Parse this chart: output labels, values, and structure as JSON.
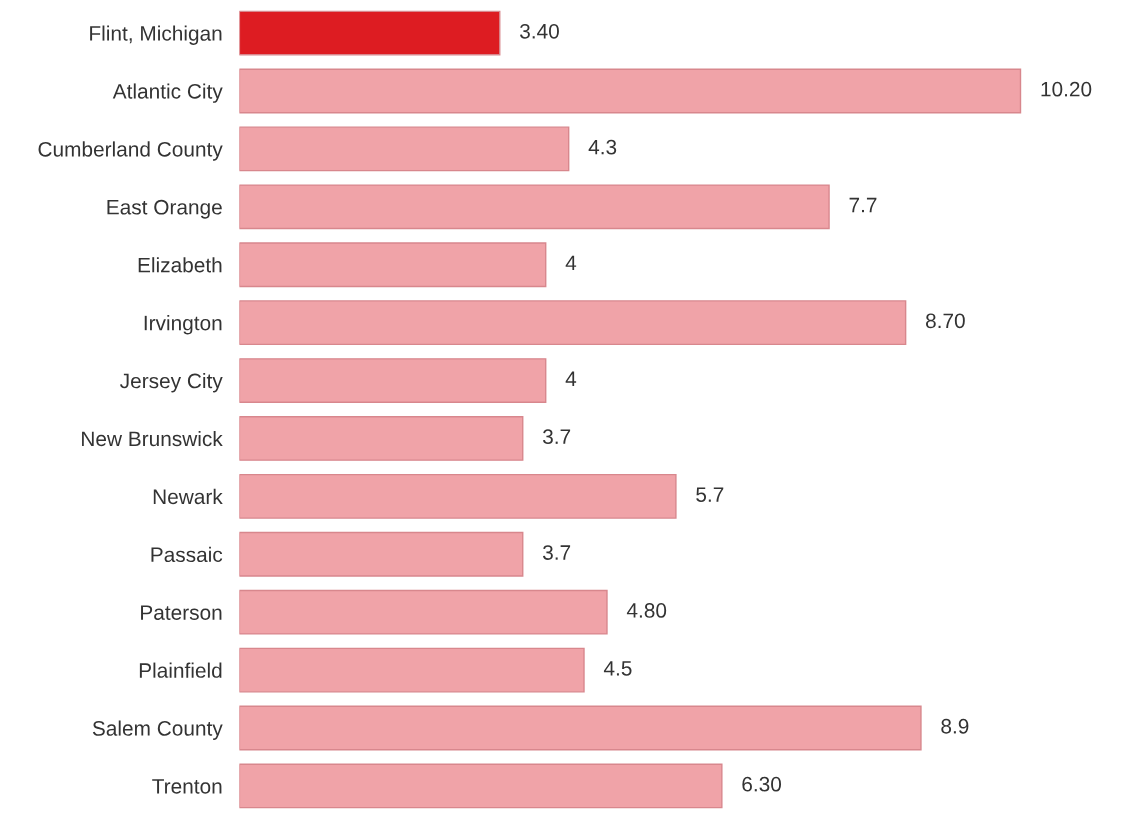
{
  "chart_data": {
    "type": "bar",
    "orientation": "horizontal",
    "categories": [
      "Flint, Michigan",
      "Atlantic City",
      "Cumberland County",
      "East Orange",
      "Elizabeth",
      "Irvington",
      "Jersey City",
      "New Brunswick",
      "Newark",
      "Passaic",
      "Paterson",
      "Plainfield",
      "Salem County",
      "Trenton"
    ],
    "values": [
      3.4,
      10.2,
      4.3,
      7.7,
      4,
      8.7,
      4,
      3.7,
      5.7,
      3.7,
      4.8,
      4.5,
      8.9,
      6.3
    ],
    "value_labels": [
      "3.40",
      "10.20",
      "4.3",
      "7.7",
      "4",
      "8.70",
      "4",
      "3.7",
      "5.7",
      "3.7",
      "4.80",
      "4.5",
      "8.9",
      "6.30"
    ],
    "colors": [
      "#dd1c22",
      "#f0a3a8",
      "#f0a3a8",
      "#f0a3a8",
      "#f0a3a8",
      "#f0a3a8",
      "#f0a3a8",
      "#f0a3a8",
      "#f0a3a8",
      "#f0a3a8",
      "#f0a3a8",
      "#f0a3a8",
      "#f0a3a8",
      "#f0a3a8"
    ],
    "grid": false,
    "legend": false
  }
}
